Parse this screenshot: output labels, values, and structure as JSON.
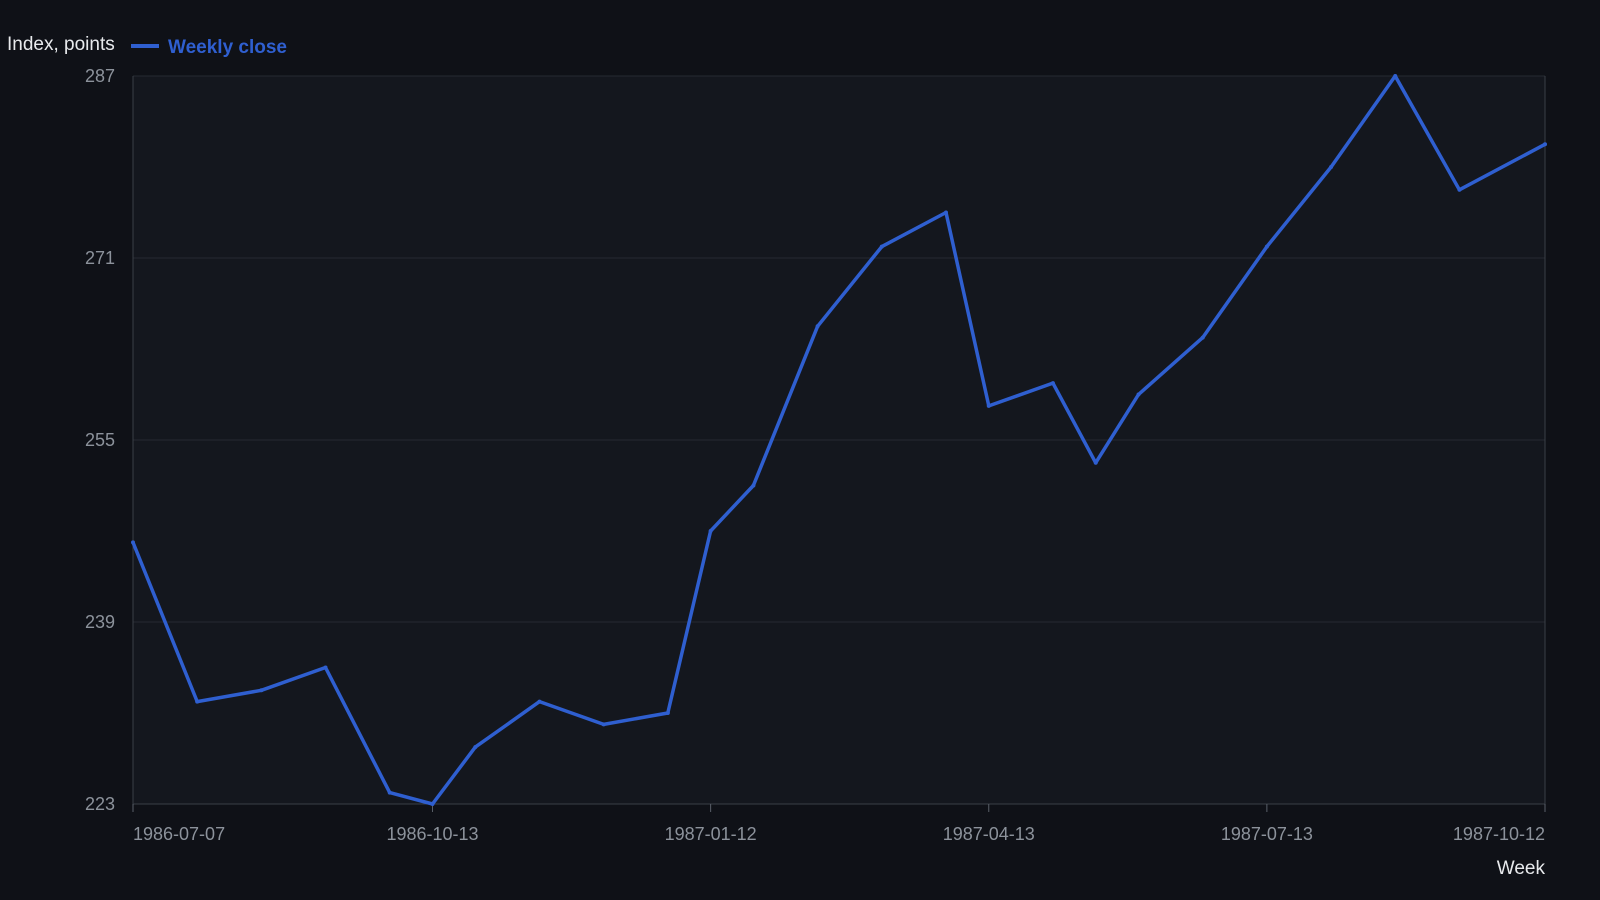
{
  "chart_data": {
    "type": "line",
    "title": "",
    "xlabel": "Week",
    "ylabel": "Index, points",
    "x_scale": "date",
    "ylim": [
      223,
      287
    ],
    "y_ticks": [
      "223",
      "239",
      "255",
      "271",
      "287"
    ],
    "x_ticks": [
      "1986-07-07",
      "1986-10-13",
      "1987-01-12",
      "1987-04-13",
      "1987-07-13",
      "1987-10-12"
    ],
    "grid": "horizontal",
    "legend": "top-left",
    "colors": {
      "background": "#0f1117",
      "plot_background": "#14171e",
      "series": "#2f5fd0"
    },
    "x": [
      "1986-07-07",
      "1986-07-28",
      "1986-08-18",
      "1986-09-08",
      "1986-09-29",
      "1986-10-13",
      "1986-10-27",
      "1986-11-17",
      "1986-12-08",
      "1986-12-29",
      "1987-01-12",
      "1987-01-26",
      "1987-02-16",
      "1987-03-09",
      "1987-03-30",
      "1987-04-13",
      "1987-05-04",
      "1987-05-18",
      "1987-06-01",
      "1987-06-22",
      "1987-07-13",
      "1987-08-03",
      "1987-08-24",
      "1987-09-14",
      "1987-10-12"
    ],
    "series": [
      {
        "name": "Weekly close",
        "values": [
          246,
          232,
          233,
          235,
          224,
          223,
          228,
          232,
          230,
          231,
          247,
          251,
          265,
          272,
          275,
          258,
          260,
          253,
          259,
          264,
          272,
          279,
          287,
          277,
          281
        ]
      }
    ]
  }
}
